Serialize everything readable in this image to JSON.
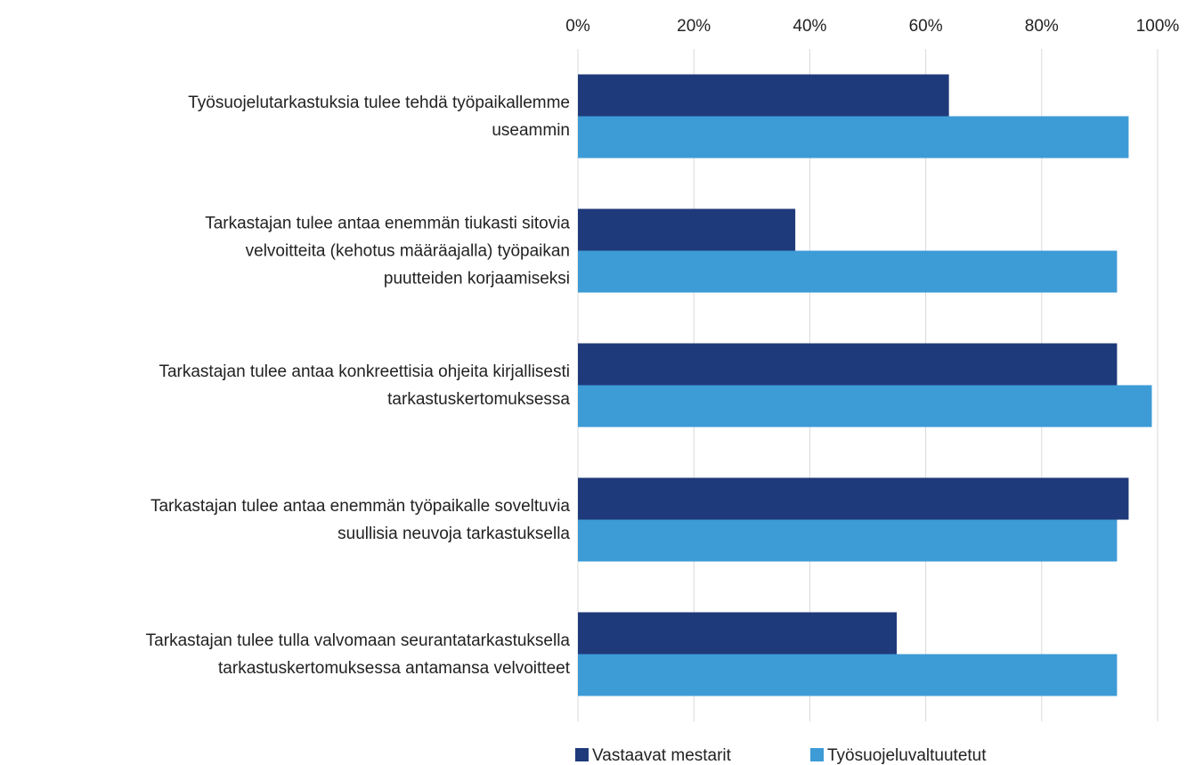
{
  "chart_data": {
    "type": "barh",
    "categories": [
      "Työsuojelutarkastuksia tulee tehdä työpaikallemme\nuseammin",
      "Tarkastajan tulee antaa enemmän tiukasti sitovia\nvelvoitteita (kehotus määräajalla) työpaikan\nputteiden korjaamiseksi",
      "Tarkastajan tulee antaa konkreettisia ohjeita kirjallisesti\ntarkastuskertomuksessa",
      "Tarkastajan tulee antaa enemmän työpaikalle soveltuvia\nsuullisia neuvoja tarkastuksella",
      "Tarkastajan tulee tulla valvomaan seurantatarkastuksella\ntarkastuskertomuksessa antamansa velvoitteet"
    ],
    "series": [
      {
        "name": "Vastaavat mestarit",
        "color": "#1f3a7a",
        "values": [
          64,
          37.5,
          93,
          95,
          55
        ]
      },
      {
        "name": "Työsuojeluvaltuutetut",
        "color": "#3d9bd6",
        "values": [
          95,
          93,
          99,
          93,
          93
        ]
      }
    ],
    "xlim": [
      0,
      100
    ],
    "xticks": [
      {
        "value": 0,
        "label": "0%"
      },
      {
        "value": 20,
        "label": "20%"
      },
      {
        "value": 40,
        "label": "40%"
      },
      {
        "value": 60,
        "label": "60%"
      },
      {
        "value": 80,
        "label": "80%"
      },
      {
        "value": 100,
        "label": "100%"
      }
    ],
    "grid": true,
    "legend": "bottom"
  }
}
